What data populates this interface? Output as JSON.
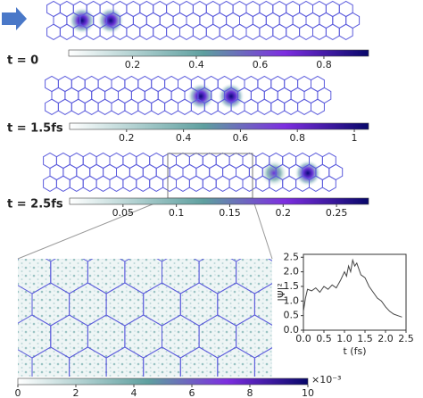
{
  "chart_data": [
    {
      "type": "colorbar",
      "label": "t = 0",
      "xlim": [
        0,
        0.94
      ],
      "xticks": [
        0.2,
        0.4,
        0.6,
        0.8
      ]
    },
    {
      "type": "colorbar",
      "label": "t = 1.5fs",
      "xlim": [
        0,
        1.05
      ],
      "xticks": [
        0.2,
        0.4,
        0.6,
        0.8,
        1
      ]
    },
    {
      "type": "colorbar",
      "label": "t = 2.5fs",
      "xlim": [
        0,
        0.28
      ],
      "xticks": [
        0.05,
        0.1,
        0.15,
        0.2,
        0.25
      ]
    },
    {
      "type": "colorbar",
      "offset_label": "×10⁻³",
      "xlim": [
        0,
        10
      ],
      "xticks": [
        0,
        2,
        4,
        6,
        8,
        10
      ]
    },
    {
      "type": "line",
      "xlabel": "t (fs)",
      "ylabel": "|Ψ|²",
      "color": "#444444",
      "x": [
        0,
        0.05,
        0.1,
        0.2,
        0.3,
        0.4,
        0.5,
        0.6,
        0.7,
        0.8,
        0.9,
        1.0,
        1.05,
        1.1,
        1.15,
        1.2,
        1.25,
        1.3,
        1.4,
        1.5,
        1.6,
        1.7,
        1.8,
        1.9,
        2.0,
        2.1,
        2.2,
        2.3,
        2.4
      ],
      "values": [
        0.65,
        1.1,
        1.4,
        1.35,
        1.45,
        1.3,
        1.5,
        1.4,
        1.55,
        1.45,
        1.7,
        2.0,
        1.85,
        2.2,
        2.0,
        2.4,
        2.2,
        2.3,
        1.9,
        1.8,
        1.5,
        1.3,
        1.1,
        1.0,
        0.8,
        0.65,
        0.55,
        0.5,
        0.45
      ],
      "xlim": [
        0,
        2.5
      ],
      "ylim": [
        0,
        2.6
      ],
      "xticks": [
        {
          "value": 0,
          "label": "0.0"
        },
        0.5,
        {
          "value": 1,
          "label": "1.0"
        },
        1.5,
        {
          "value": 2,
          "label": "2.0"
        },
        2.5
      ],
      "yticks": [
        {
          "value": 0,
          "label": "0.0"
        },
        0.5,
        {
          "value": 1,
          "label": "1.0"
        },
        1.5,
        {
          "value": 2,
          "label": "2.0"
        },
        2.5
      ]
    }
  ]
}
